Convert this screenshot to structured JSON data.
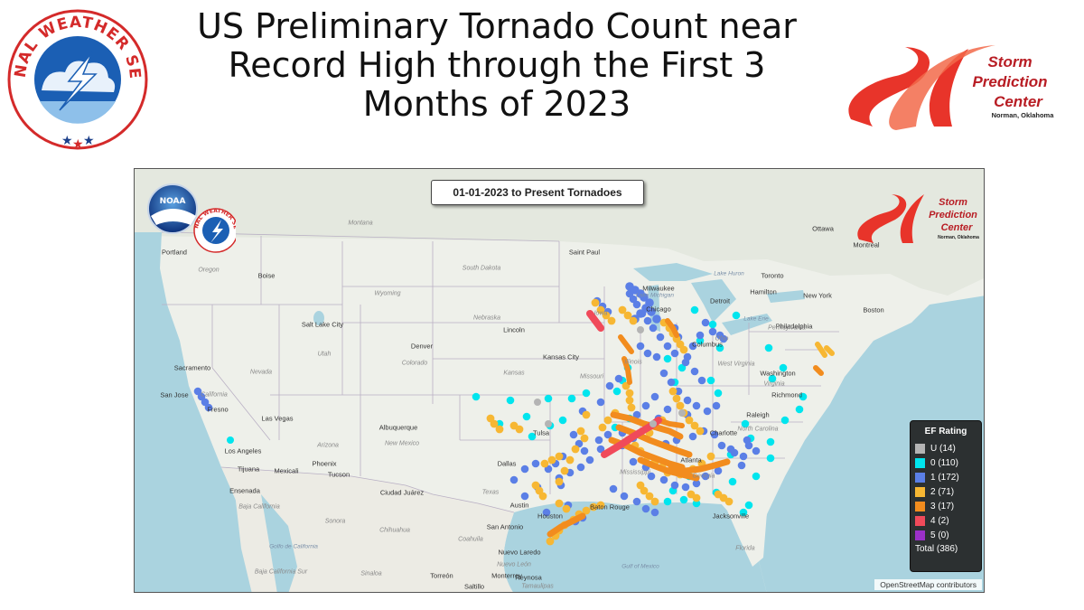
{
  "title": {
    "line1": "US Preliminary Tornado Count near",
    "line2": "Record High through the First 3",
    "line3": "Months of 2023"
  },
  "nws_logo": {
    "text": "NATIONAL WEATHER SERVICE"
  },
  "spc_logo": {
    "line1": "Storm",
    "line2": "Prediction",
    "line3": "Center",
    "line4": "Norman, Oklahoma"
  },
  "map": {
    "date_label": "01-01-2023 to Present Tornadoes",
    "attribution": "OpenStreetMap contributors",
    "logos": {
      "noaa": "NOAA",
      "nws": "NATIONAL WEATHER SERVICE",
      "spc_line1": "Storm",
      "spc_line2": "Prediction",
      "spc_line3": "Center",
      "spc_line4": "Norman, Oklahoma"
    },
    "legend": {
      "title": "EF Rating",
      "items": [
        {
          "label": "U (14)",
          "color": "#b4b4b4"
        },
        {
          "label": "0 (110)",
          "color": "#00e5ee"
        },
        {
          "label": "1 (172)",
          "color": "#5b7fe6"
        },
        {
          "label": "2 (71)",
          "color": "#f7b733"
        },
        {
          "label": "3 (17)",
          "color": "#f28c1e"
        },
        {
          "label": "4 (2)",
          "color": "#f04a5a"
        },
        {
          "label": "5 (0)",
          "color": "#9b30c8"
        }
      ],
      "total": "Total (386)"
    },
    "places": {
      "cities": [
        "Saint Paul",
        "Milwaukee",
        "Chicago",
        "Detroit",
        "Toronto",
        "Ottawa",
        "Montréal",
        "Boston",
        "New York",
        "Philadelphia",
        "Washington",
        "Richmond",
        "Raleigh",
        "Charlotte",
        "Atlanta",
        "Jacksonville",
        "Columbus",
        "Kansas City",
        "Lincoln",
        "Denver",
        "Salt Lake City",
        "Boise",
        "Portland",
        "Sacramento",
        "San Jose",
        "Fresno",
        "Las Vegas",
        "Los Angeles",
        "Tijuana",
        "Mexicali",
        "Phoenix",
        "Tucson",
        "Albuquerque",
        "Ensenada",
        "Ciudad Juárez",
        "Dallas",
        "Austin",
        "Houston",
        "San Antonio",
        "Baton Rouge",
        "Nuevo Laredo",
        "Monterrey",
        "Reynosa",
        "Torreón",
        "Saltillo",
        "Tulsa",
        "Hamilton",
        "Ohio",
        "Oregon",
        "California",
        "Nevada",
        "Utah",
        "Arizona",
        "Colorado",
        "Kansas",
        "Missouri",
        "Nebraska",
        "Iowa",
        "Wyoming",
        "South Dakota",
        "Montana",
        "Texas",
        "New Mexico",
        "Pennsylvania",
        "West Virginia",
        "North Carolina",
        "Georgia",
        "Florida",
        "Mississippi",
        "Chihuahua",
        "Sonora",
        "Coahuila",
        "Baja California",
        "Baja California Sur",
        "Sinaloa",
        "Nuevo León",
        "Tamaulipas",
        "Virginia",
        "Illinois"
      ],
      "water": [
        "Lake Huron",
        "Lake Michigan",
        "Lake Erie",
        "Gulf of Mexico",
        "Golfo de California"
      ]
    }
  }
}
